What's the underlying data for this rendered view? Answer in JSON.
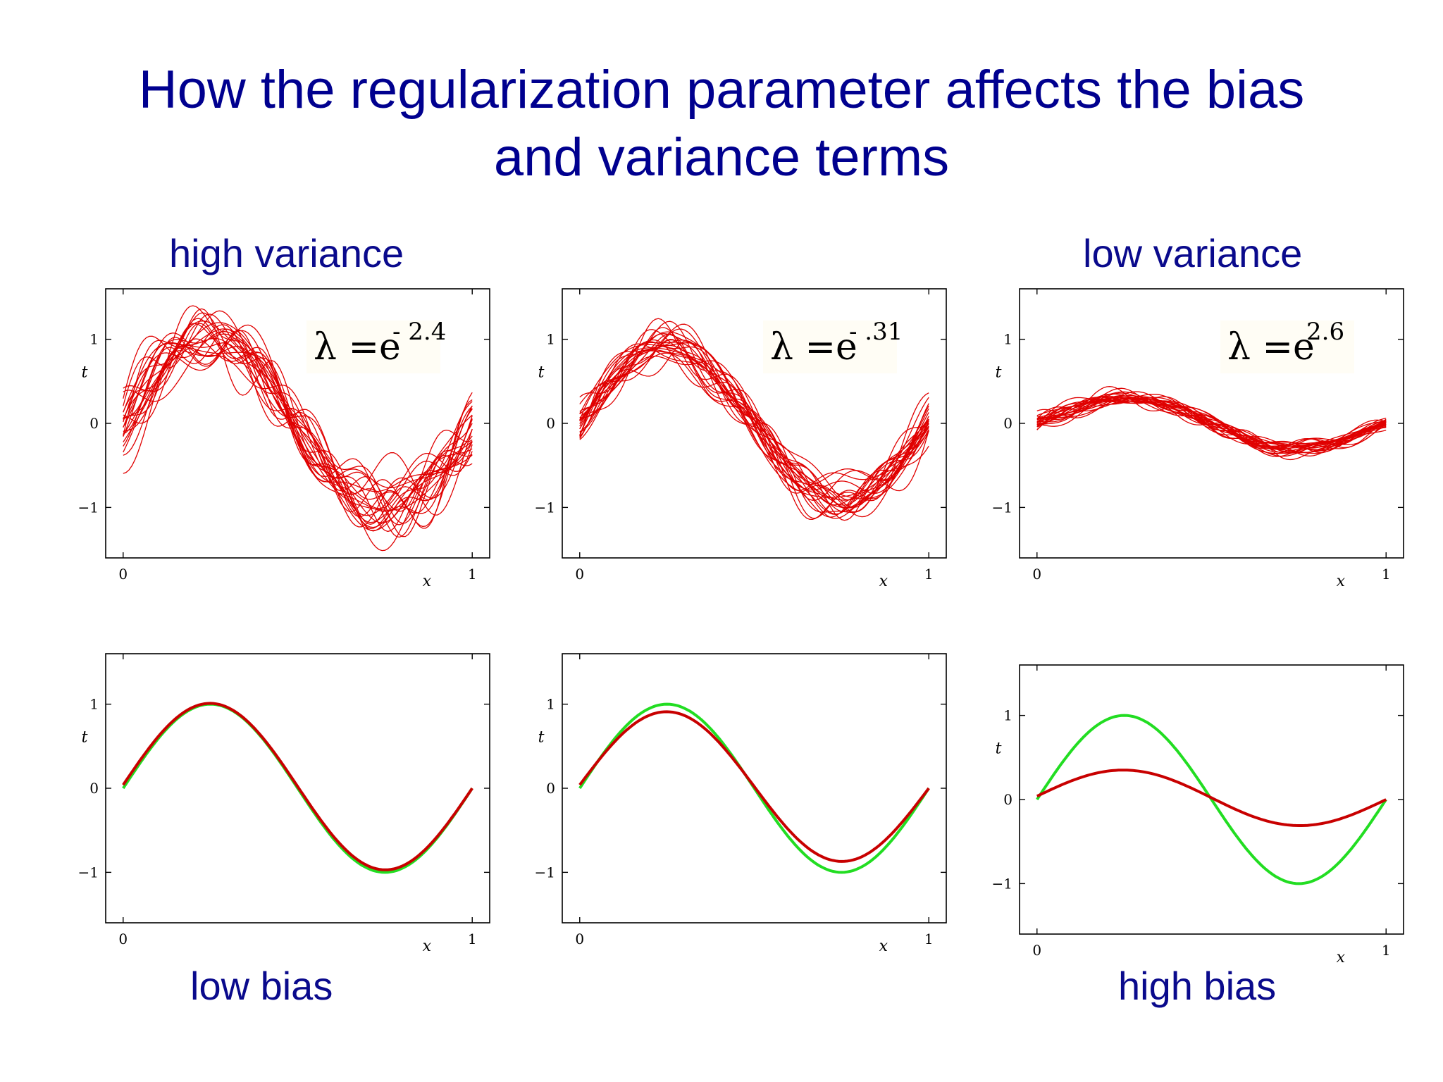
{
  "title": {
    "line1": "How the regularization parameter affects the bias",
    "line2": "and variance terms"
  },
  "labels": {
    "high_variance": "high variance",
    "low_variance": "low variance",
    "low_bias": "low bias",
    "high_bias": "high bias"
  },
  "colors": {
    "title": "#00008f",
    "label": "#0a0a8c",
    "fit_curves": "#e00000",
    "average_fit": "#c80000",
    "true_function": "#22dd22"
  },
  "chart_data": [
    {
      "type": "line",
      "panel": "top-left",
      "xlabel": "x",
      "ylabel": "t",
      "xlim": [
        -0.05,
        1.05
      ],
      "ylim": [
        -1.6,
        1.6
      ],
      "xticks": [
        0,
        1
      ],
      "yticks": [
        -1,
        0,
        1
      ],
      "annotation": {
        "base": "λ =e",
        "exponent": "- 2.4"
      },
      "curve_amplitude": 1.0,
      "noise_level": 0.22,
      "num_fits": 25
    },
    {
      "type": "line",
      "panel": "top-middle",
      "xlabel": "x",
      "ylabel": "t",
      "xlim": [
        -0.05,
        1.05
      ],
      "ylim": [
        -1.6,
        1.6
      ],
      "xticks": [
        0,
        1
      ],
      "yticks": [
        -1,
        0,
        1
      ],
      "annotation": {
        "base": "λ =e",
        "exponent": "- .31"
      },
      "curve_amplitude": 0.88,
      "noise_level": 0.14,
      "num_fits": 25
    },
    {
      "type": "line",
      "panel": "top-right",
      "xlabel": "x",
      "ylabel": "t",
      "xlim": [
        -0.05,
        1.05
      ],
      "ylim": [
        -1.6,
        1.6
      ],
      "xticks": [
        0,
        1
      ],
      "yticks": [
        -1,
        0,
        1
      ],
      "annotation": {
        "base": "λ =e",
        "exponent": "2.6"
      },
      "curve_amplitude": 0.3,
      "noise_level": 0.05,
      "num_fits": 25
    },
    {
      "type": "line",
      "panel": "bottom-left",
      "xlabel": "x",
      "ylabel": "t",
      "xlim": [
        -0.05,
        1.05
      ],
      "ylim": [
        -1.6,
        1.6
      ],
      "xticks": [
        0,
        1
      ],
      "yticks": [
        -1,
        0,
        1
      ],
      "series": [
        {
          "name": "true function",
          "function": "sin(2πx)",
          "color": "#22dd22"
        },
        {
          "name": "average fit",
          "amplitude": 0.98,
          "color": "#c80000"
        }
      ]
    },
    {
      "type": "line",
      "panel": "bottom-middle",
      "xlabel": "x",
      "ylabel": "t",
      "xlim": [
        -0.05,
        1.05
      ],
      "ylim": [
        -1.6,
        1.6
      ],
      "xticks": [
        0,
        1
      ],
      "yticks": [
        -1,
        0,
        1
      ],
      "series": [
        {
          "name": "true function",
          "function": "sin(2πx)",
          "color": "#22dd22"
        },
        {
          "name": "average fit",
          "amplitude": 0.88,
          "color": "#c80000"
        }
      ]
    },
    {
      "type": "line",
      "panel": "bottom-right",
      "xlabel": "x",
      "ylabel": "t",
      "xlim": [
        -0.05,
        1.05
      ],
      "ylim": [
        -1.6,
        1.6
      ],
      "xticks": [
        0,
        1
      ],
      "yticks": [
        -1,
        0,
        1
      ],
      "series": [
        {
          "name": "true function",
          "function": "sin(2πx)",
          "color": "#22dd22"
        },
        {
          "name": "average fit",
          "amplitude": 0.32,
          "color": "#c80000"
        }
      ]
    }
  ]
}
